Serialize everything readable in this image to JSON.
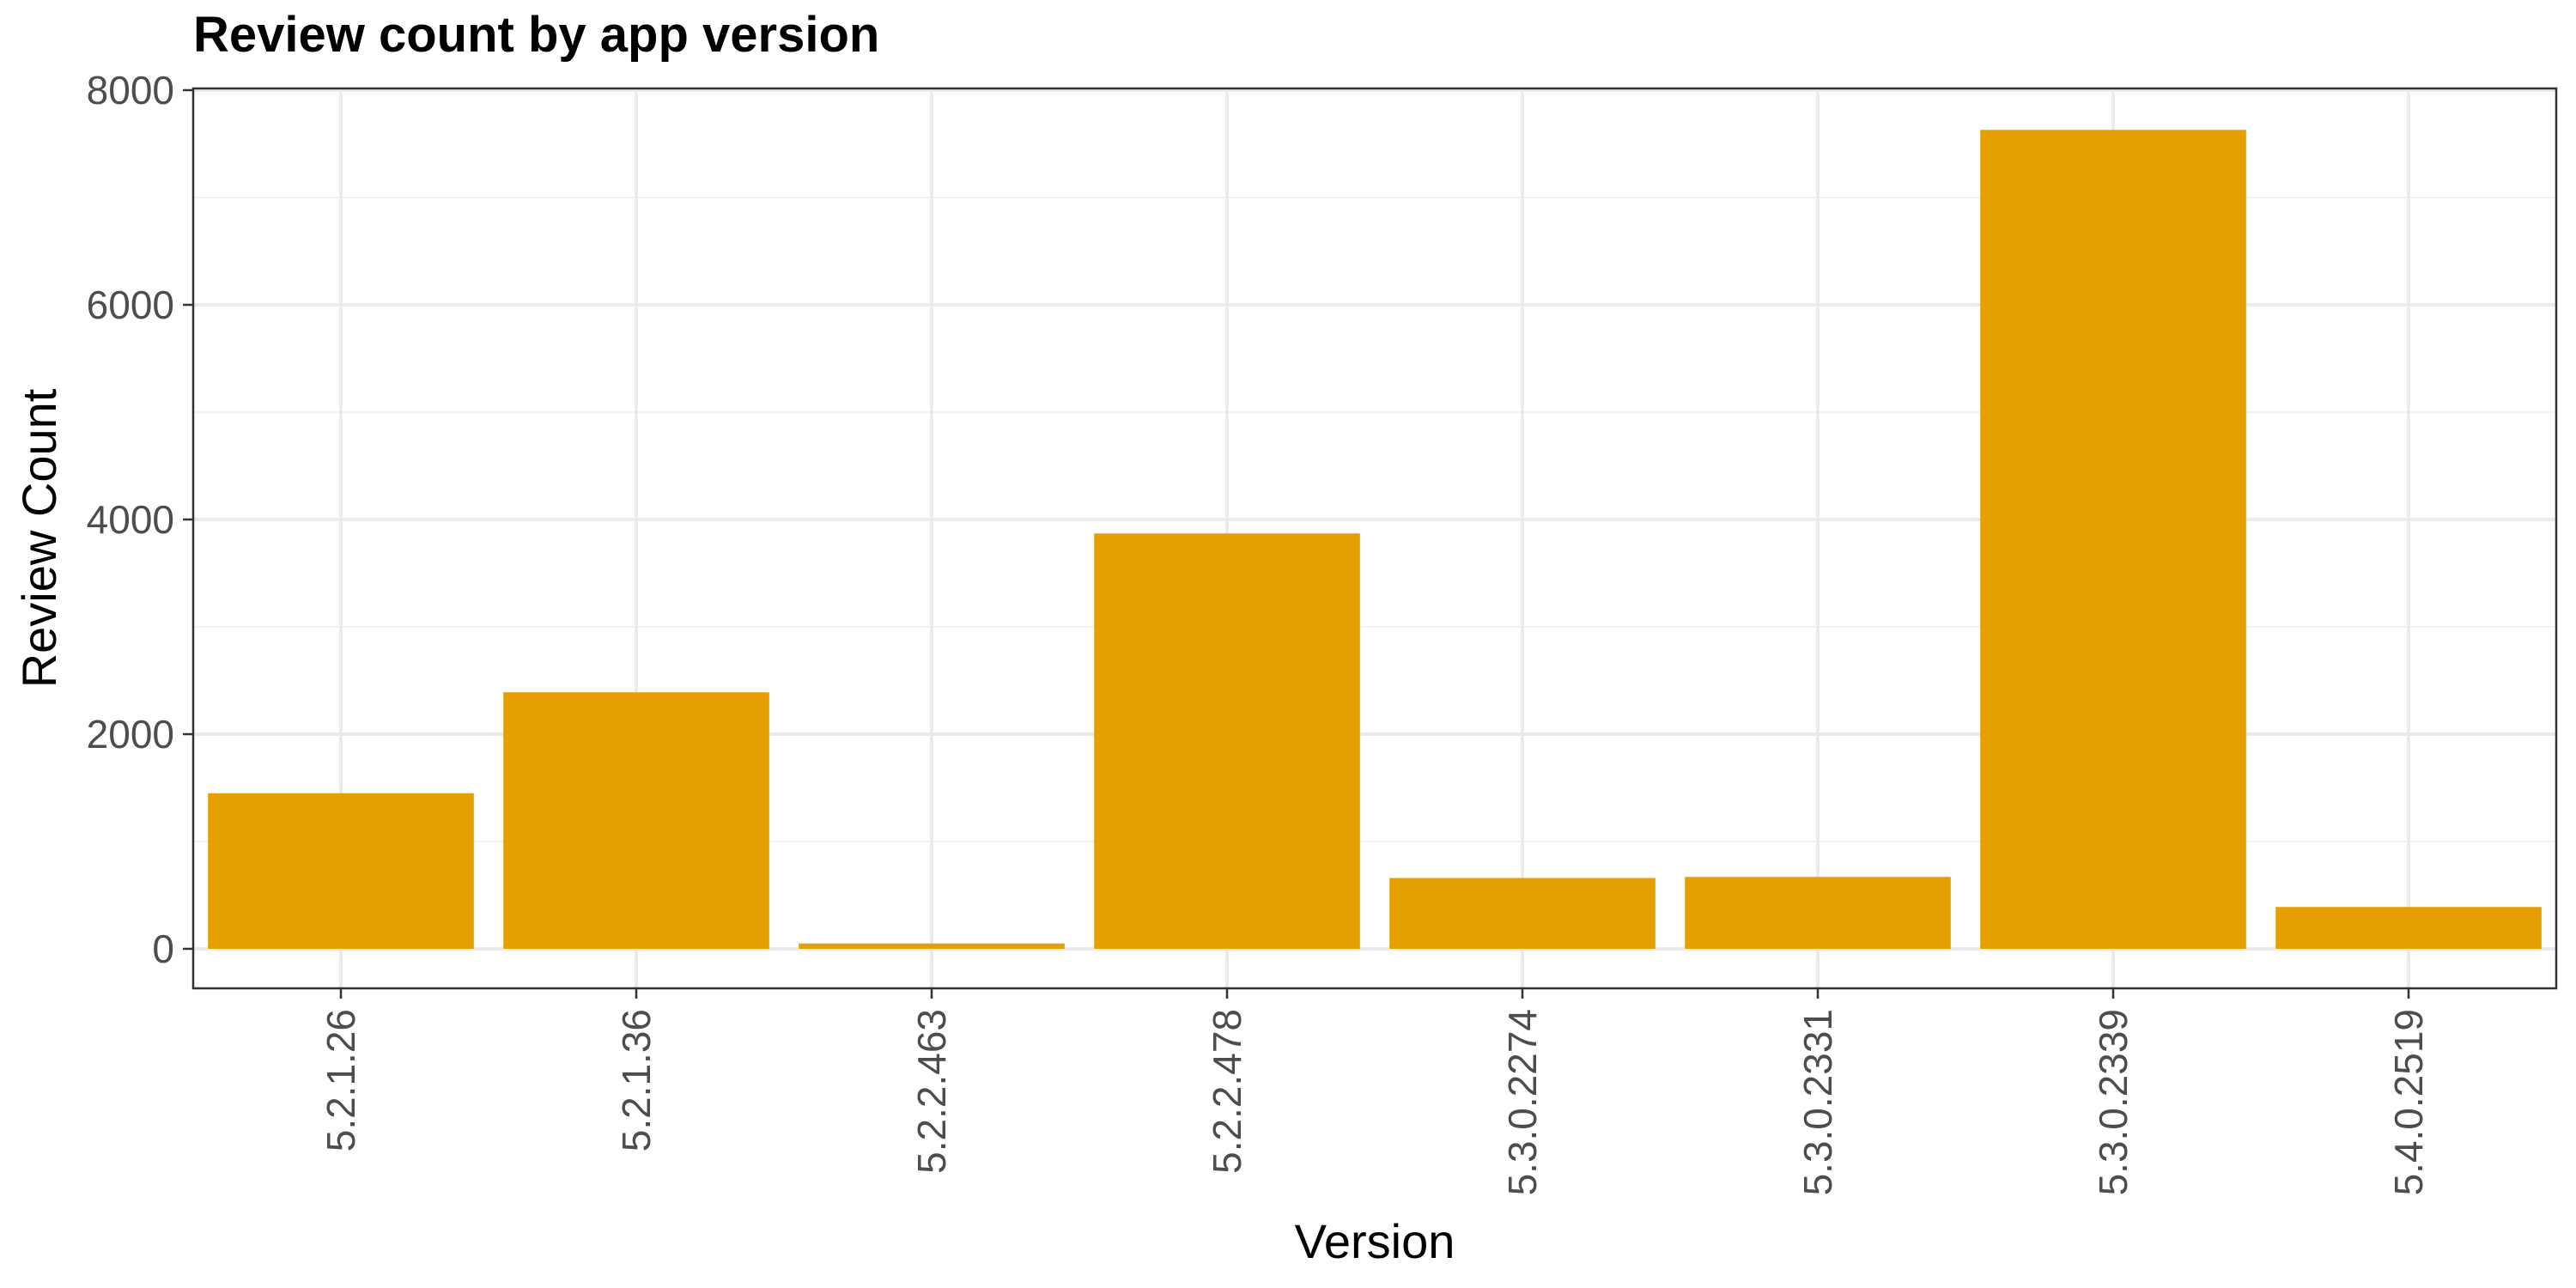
{
  "chart_data": {
    "type": "bar",
    "title": "Review count by app version",
    "xlabel": "Version",
    "ylabel": "Review Count",
    "categories": [
      "5.2.1.26",
      "5.2.1.36",
      "5.2.2.463",
      "5.2.2.478",
      "5.3.0.2274",
      "5.3.0.2331",
      "5.3.0.2339",
      "5.4.0.2519"
    ],
    "values": [
      1450,
      2390,
      50,
      3870,
      660,
      670,
      7630,
      390
    ],
    "ylim": [
      0,
      8000
    ],
    "yticks": [
      0,
      2000,
      4000,
      6000,
      8000
    ],
    "grid": true,
    "legend": "none",
    "bar_color": "#E69F00"
  }
}
